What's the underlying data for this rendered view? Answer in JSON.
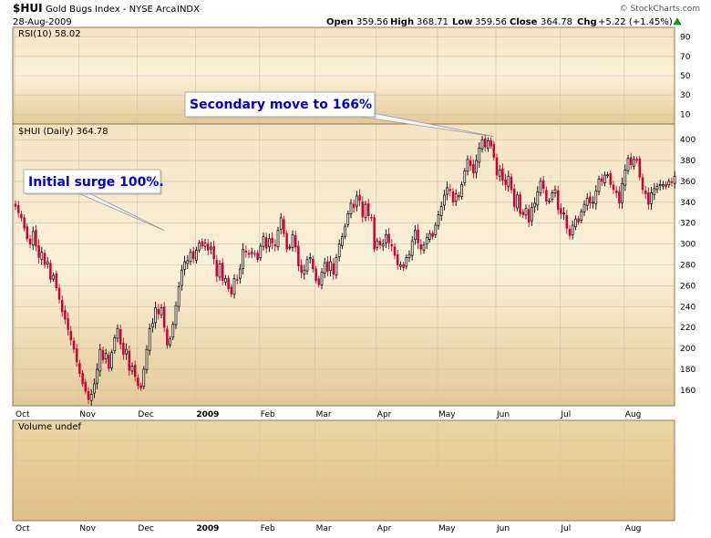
{
  "header": {
    "symbol": "$HUI",
    "name": "Gold Bugs Index - NYSE Arca",
    "exchange": "INDX",
    "date": "28-Aug-2009",
    "watermark": "© StockCharts.com",
    "open_label": "Open",
    "open": "359.56",
    "high_label": "High",
    "high": "368.71",
    "low_label": "Low",
    "low": "359.56",
    "close_label": "Close",
    "close": "364.78",
    "chg_label": "Chg",
    "chg": "+5.22 (+1.45%)",
    "chg_icon": "up-triangle-icon"
  },
  "colors": {
    "up": "#000000",
    "down": "#cc0033",
    "panel_bg": "#e8d2a6",
    "callout_text": "#0000cc"
  },
  "rsi_panel": {
    "label": "RSI(10) 58.02",
    "ticks": [
      "90",
      "70",
      "50",
      "30",
      "10"
    ]
  },
  "volume_panel": {
    "label": "Volume undef"
  },
  "chart_data": {
    "type": "candlestick",
    "title": "$HUI Gold Bugs Index - NYSE Arca INDX",
    "series_label": "$HUI (Daily) 364.78",
    "y_ticks": [
      160,
      180,
      200,
      220,
      240,
      260,
      280,
      300,
      320,
      340,
      360,
      380,
      400
    ],
    "ylim": [
      145,
      415
    ],
    "x_labels": [
      "Oct",
      "Nov",
      "Dec",
      "2009",
      "Feb",
      "Mar",
      "Apr",
      "May",
      "Jun",
      "Jul",
      "Aug"
    ],
    "x_label_trading_day": [
      0,
      22,
      42,
      62,
      84,
      103,
      124,
      145,
      165,
      187,
      209
    ],
    "annotations": [
      {
        "text": "Initial surge 100%.",
        "target_day": 51,
        "target_value": 313
      },
      {
        "text": "Secondary move to 166%",
        "target_day": 164,
        "target_value": 403
      }
    ],
    "closes": [
      336,
      330,
      325,
      315,
      305,
      300,
      312,
      298,
      287,
      292,
      280,
      283,
      266,
      270,
      258,
      247,
      235,
      228,
      218,
      208,
      199,
      187,
      176,
      166,
      159,
      151,
      156,
      166,
      180,
      199,
      189,
      195,
      181,
      196,
      210,
      219,
      204,
      194,
      199,
      179,
      183,
      173,
      164,
      162,
      180,
      199,
      219,
      224,
      239,
      233,
      239,
      220,
      203,
      209,
      223,
      241,
      259,
      275,
      283,
      284,
      292,
      286,
      294,
      301,
      298,
      301,
      294,
      297,
      286,
      269,
      281,
      265,
      267,
      257,
      252,
      267,
      266,
      276,
      295,
      292,
      290,
      292,
      291,
      285,
      298,
      307,
      296,
      305,
      301,
      298,
      313,
      325,
      310,
      295,
      297,
      309,
      297,
      279,
      273,
      275,
      285,
      287,
      276,
      265,
      261,
      273,
      282,
      274,
      283,
      271,
      287,
      300,
      307,
      317,
      329,
      339,
      335,
      346,
      342,
      326,
      338,
      327,
      325,
      295,
      303,
      299,
      300,
      309,
      301,
      298,
      289,
      280,
      280,
      277,
      287,
      290,
      303,
      313,
      301,
      295,
      299,
      306,
      310,
      307,
      318,
      328,
      336,
      347,
      354,
      351,
      340,
      348,
      345,
      357,
      370,
      381,
      375,
      368,
      380,
      392,
      400,
      393,
      399,
      394,
      383,
      366,
      371,
      361,
      357,
      365,
      352,
      336,
      347,
      329,
      328,
      334,
      321,
      335,
      339,
      350,
      360,
      353,
      341,
      341,
      349,
      352,
      333,
      329,
      329,
      315,
      308,
      318,
      324,
      321,
      331,
      338,
      344,
      339,
      340,
      351,
      362,
      360,
      366,
      366,
      357,
      352,
      349,
      339,
      358,
      371,
      382,
      376,
      381,
      380,
      364,
      352,
      348,
      338,
      349,
      353,
      355,
      357,
      357,
      355,
      360,
      359,
      365
    ]
  }
}
